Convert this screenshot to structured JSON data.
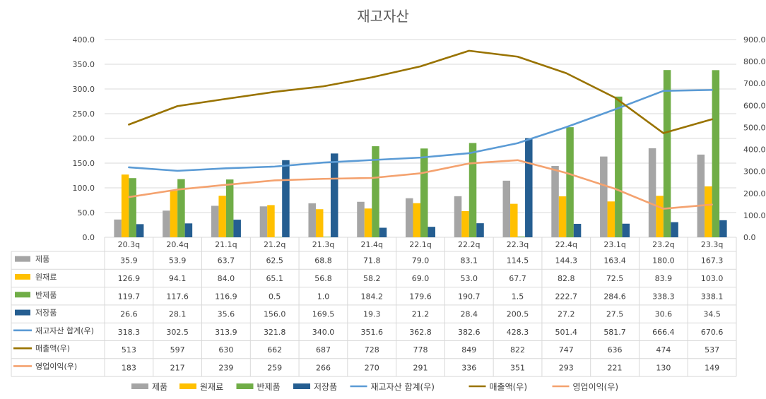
{
  "chart_data": {
    "type": "bar",
    "title": "재고자산",
    "categories": [
      "20.3q",
      "20.4q",
      "21.1q",
      "21.2q",
      "21.3q",
      "21.4q",
      "22.1q",
      "22.2q",
      "22.3q",
      "22.4q",
      "23.1q",
      "23.2q",
      "23.3q"
    ],
    "ylim_left": [
      0,
      400
    ],
    "ylim_right": [
      0,
      900
    ],
    "yticks_left": [
      "0.0",
      "50.0",
      "100.0",
      "150.0",
      "200.0",
      "250.0",
      "300.0",
      "350.0",
      "400.0"
    ],
    "yticks_right": [
      "0.0",
      "100.0",
      "200.0",
      "300.0",
      "400.0",
      "500.0",
      "600.0",
      "700.0",
      "800.0",
      "900.0"
    ],
    "series": [
      {
        "name": "제품",
        "kind": "bar",
        "axis": "left",
        "color": "#A5A5A5",
        "values": [
          35.9,
          53.9,
          63.7,
          62.5,
          68.8,
          71.8,
          79.0,
          83.1,
          114.5,
          144.3,
          163.4,
          180.0,
          167.3
        ],
        "labels": [
          "35.9",
          "53.9",
          "63.7",
          "62.5",
          "68.8",
          "71.8",
          "79.0",
          "83.1",
          "114.5",
          "144.3",
          "163.4",
          "180.0",
          "167.3"
        ]
      },
      {
        "name": "원재료",
        "kind": "bar",
        "axis": "left",
        "color": "#FFC000",
        "values": [
          126.9,
          94.1,
          84.0,
          65.1,
          56.8,
          58.2,
          69.0,
          53.0,
          67.7,
          82.8,
          72.5,
          83.9,
          103.0
        ],
        "labels": [
          "126.9",
          "94.1",
          "84.0",
          "65.1",
          "56.8",
          "58.2",
          "69.0",
          "53.0",
          "67.7",
          "82.8",
          "72.5",
          "83.9",
          "103.0"
        ]
      },
      {
        "name": "반제품",
        "kind": "bar",
        "axis": "left",
        "color": "#70AD47",
        "values": [
          119.7,
          117.6,
          116.9,
          0.5,
          1.0,
          184.2,
          179.6,
          190.7,
          1.5,
          222.7,
          284.6,
          338.3,
          338.1
        ],
        "labels": [
          "119.7",
          "117.6",
          "116.9",
          "0.5",
          "1.0",
          "184.2",
          "179.6",
          "190.7",
          "1.5",
          "222.7",
          "284.6",
          "338.3",
          "338.1"
        ]
      },
      {
        "name": "저장품",
        "kind": "bar",
        "axis": "left",
        "color": "#255E91",
        "values": [
          26.6,
          28.1,
          35.6,
          156.0,
          169.5,
          19.3,
          21.2,
          28.4,
          200.5,
          27.2,
          27.5,
          30.6,
          34.5
        ],
        "labels": [
          "26.6",
          "28.1",
          "35.6",
          "156.0",
          "169.5",
          "19.3",
          "21.2",
          "28.4",
          "200.5",
          "27.2",
          "27.5",
          "30.6",
          "34.5"
        ]
      },
      {
        "name": "재고자산 합계(우)",
        "kind": "line",
        "axis": "right",
        "color": "#5B9BD5",
        "values": [
          318.3,
          302.5,
          313.9,
          321.8,
          340.0,
          351.6,
          362.8,
          382.6,
          428.3,
          501.4,
          581.7,
          666.4,
          670.6
        ],
        "labels": [
          "318.3",
          "302.5",
          "313.9",
          "321.8",
          "340.0",
          "351.6",
          "362.8",
          "382.6",
          "428.3",
          "501.4",
          "581.7",
          "666.4",
          "670.6"
        ]
      },
      {
        "name": "매출액(우)",
        "kind": "line",
        "axis": "right",
        "color": "#997300",
        "values": [
          513,
          597,
          630,
          662,
          687,
          728,
          778,
          849,
          822,
          747,
          636,
          474,
          537
        ],
        "labels": [
          "513",
          "597",
          "630",
          "662",
          "687",
          "728",
          "778",
          "849",
          "822",
          "747",
          "636",
          "474",
          "537"
        ]
      },
      {
        "name": "영업이익(우)",
        "kind": "line",
        "axis": "right",
        "color": "#F4A26F",
        "values": [
          183,
          217,
          239,
          259,
          266,
          270,
          291,
          336,
          351,
          293,
          221,
          130,
          149
        ],
        "labels": [
          "183",
          "217",
          "239",
          "259",
          "266",
          "270",
          "291",
          "336",
          "351",
          "293",
          "221",
          "130",
          "149"
        ]
      }
    ],
    "legend_position": "bottom",
    "has_data_table": true
  }
}
